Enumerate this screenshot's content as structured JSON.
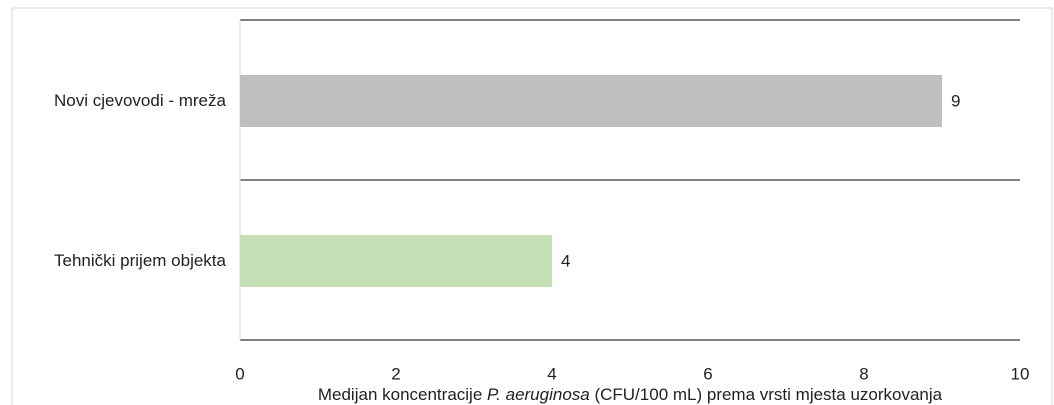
{
  "chart_data": {
    "type": "bar",
    "orientation": "horizontal",
    "categories": [
      "Novi cjevovodi - mreža",
      "Tehnički prijem objekta"
    ],
    "values": [
      9,
      4
    ],
    "colors": [
      "#bfbfbf",
      "#c5e0b4"
    ],
    "xlim": [
      0,
      10
    ],
    "xticks": [
      0,
      2,
      4,
      6,
      8,
      10
    ],
    "xlabel": [
      "Medijan koncentracije ",
      "P. aeruginosa",
      " (CFU/100 mL) prema vrsti mjesta uzorkovanja"
    ]
  }
}
